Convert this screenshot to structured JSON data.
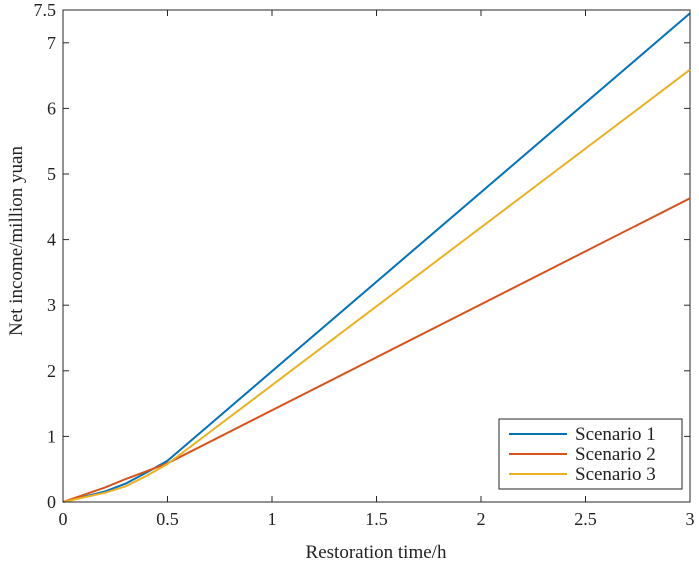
{
  "chart_data": {
    "type": "line",
    "title": "",
    "xlabel": "Restoration time/h",
    "ylabel": "Net income/million yuan",
    "xlim": [
      0,
      3
    ],
    "ylim": [
      0,
      7.5
    ],
    "xticks": [
      0,
      0.5,
      1,
      1.5,
      2,
      2.5,
      3
    ],
    "xtick_labels": [
      "0",
      "0.5",
      "1",
      "1.5",
      "2",
      "2.5",
      "3"
    ],
    "yticks": [
      0,
      1,
      2,
      3,
      4,
      5,
      6,
      7,
      7.5
    ],
    "ytick_labels": [
      "0",
      "1",
      "2",
      "3",
      "4",
      "5",
      "6",
      "7",
      "7.5"
    ],
    "grid": false,
    "legend_position": "bottom-right",
    "series": [
      {
        "name": "Scenario 1",
        "color": "#0072BD",
        "x": [
          0,
          0.1,
          0.2,
          0.3,
          0.4,
          0.5,
          3
        ],
        "y": [
          0,
          0.08,
          0.16,
          0.28,
          0.45,
          0.63,
          7.45
        ]
      },
      {
        "name": "Scenario 2",
        "color": "#D95319",
        "x": [
          0,
          0.1,
          0.2,
          0.3,
          0.4,
          0.5,
          3
        ],
        "y": [
          0,
          0.11,
          0.22,
          0.35,
          0.47,
          0.59,
          4.63
        ]
      },
      {
        "name": "Scenario 3",
        "color": "#EDB120",
        "x": [
          0,
          0.1,
          0.2,
          0.3,
          0.4,
          0.5,
          3
        ],
        "y": [
          0,
          0.07,
          0.14,
          0.24,
          0.4,
          0.58,
          6.59
        ]
      }
    ]
  }
}
